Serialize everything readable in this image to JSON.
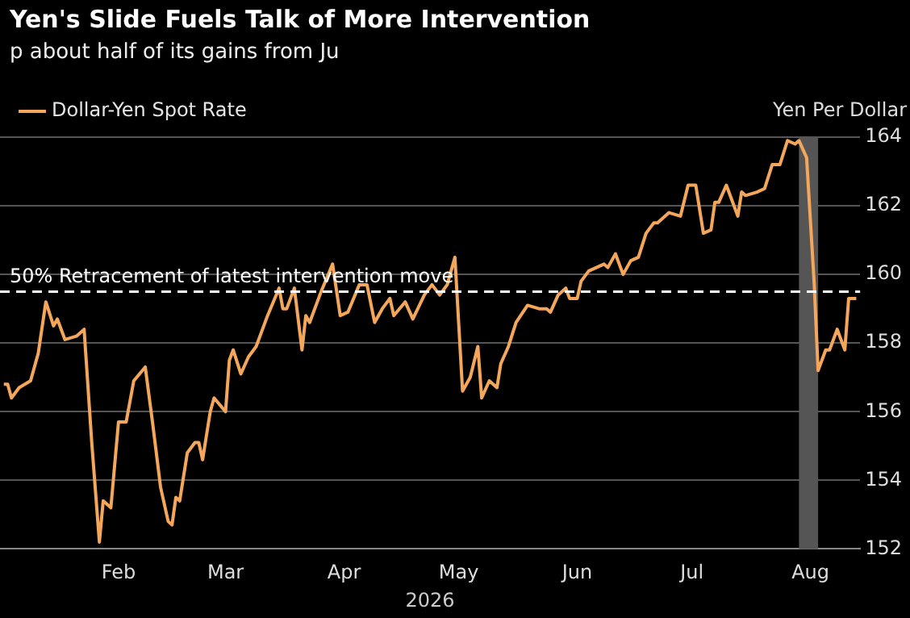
{
  "chart_data": {
    "type": "line",
    "title": "Yen's Slide Fuels Talk of More Intervention",
    "subtitle": "p about half of its gains from Ju",
    "xlabel": "2026",
    "ylabel": "Yen Per Dollar",
    "x": [
      "2026-01-02",
      "2026-01-03",
      "2026-01-04",
      "2026-01-06",
      "2026-01-09",
      "2026-01-11",
      "2026-01-13",
      "2026-01-15",
      "2026-01-16",
      "2026-01-18",
      "2026-01-21",
      "2026-01-23",
      "2026-01-25",
      "2026-01-27",
      "2026-01-28",
      "2026-01-30",
      "2026-02-01",
      "2026-02-03",
      "2026-02-05",
      "2026-02-08",
      "2026-02-10",
      "2026-02-12",
      "2026-02-14",
      "2026-02-15",
      "2026-02-16",
      "2026-02-17",
      "2026-02-19",
      "2026-02-21",
      "2026-02-22",
      "2026-02-23",
      "2026-02-25",
      "2026-02-26",
      "2026-03-01",
      "2026-03-02",
      "2026-03-03",
      "2026-03-05",
      "2026-03-07",
      "2026-03-09",
      "2026-03-12",
      "2026-03-15",
      "2026-03-16",
      "2026-03-17",
      "2026-03-19",
      "2026-03-21",
      "2026-03-22",
      "2026-03-23",
      "2026-03-26",
      "2026-03-29",
      "2026-03-31",
      "2026-04-02",
      "2026-04-05",
      "2026-04-07",
      "2026-04-09",
      "2026-04-11",
      "2026-04-13",
      "2026-04-14",
      "2026-04-17",
      "2026-04-19",
      "2026-04-22",
      "2026-04-24",
      "2026-04-26",
      "2026-04-28",
      "2026-04-30",
      "2026-05-02",
      "2026-05-04",
      "2026-05-06",
      "2026-05-07",
      "2026-05-09",
      "2026-05-11",
      "2026-05-12",
      "2026-05-14",
      "2026-05-16",
      "2026-05-19",
      "2026-05-22",
      "2026-05-24",
      "2026-05-25",
      "2026-05-27",
      "2026-05-29",
      "2026-05-30",
      "2026-06-01",
      "2026-06-02",
      "2026-06-04",
      "2026-06-06",
      "2026-06-08",
      "2026-06-09",
      "2026-06-11",
      "2026-06-13",
      "2026-06-15",
      "2026-06-17",
      "2026-06-19",
      "2026-06-21",
      "2026-06-22",
      "2026-06-25",
      "2026-06-28",
      "2026-06-30",
      "2026-07-02",
      "2026-07-04",
      "2026-07-06",
      "2026-07-07",
      "2026-07-08",
      "2026-07-10",
      "2026-07-13",
      "2026-07-14",
      "2026-07-15",
      "2026-07-18",
      "2026-07-20",
      "2026-07-22",
      "2026-07-24",
      "2026-07-26",
      "2026-07-28",
      "2026-07-29",
      "2026-07-31",
      "2026-08-02",
      "2026-08-03",
      "2026-08-05",
      "2026-08-06",
      "2026-08-08",
      "2026-08-10",
      "2026-08-11",
      "2026-08-13"
    ],
    "series": [
      {
        "name": "Dollar-Yen Spot Rate",
        "color": "#f4a75a",
        "values": [
          156.8,
          156.8,
          156.4,
          156.7,
          156.9,
          157.7,
          159.2,
          158.5,
          158.7,
          158.1,
          158.2,
          158.4,
          155.1,
          152.2,
          153.4,
          153.2,
          155.7,
          155.7,
          156.9,
          157.3,
          155.6,
          153.8,
          152.8,
          152.7,
          153.5,
          153.4,
          154.8,
          155.1,
          155.1,
          154.6,
          156.0,
          156.4,
          156.0,
          157.5,
          157.8,
          157.1,
          157.6,
          157.9,
          158.8,
          159.6,
          159.0,
          159.0,
          159.6,
          157.8,
          158.8,
          158.6,
          159.5,
          160.3,
          158.8,
          158.9,
          159.7,
          159.7,
          158.6,
          159.0,
          159.3,
          158.8,
          159.2,
          158.7,
          159.4,
          159.7,
          159.4,
          159.7,
          160.5,
          156.6,
          157.0,
          157.9,
          156.4,
          156.9,
          156.7,
          157.4,
          157.9,
          158.6,
          159.1,
          159.0,
          159.0,
          158.9,
          159.4,
          159.6,
          159.3,
          159.3,
          159.8,
          160.1,
          160.2,
          160.3,
          160.2,
          160.6,
          160.0,
          160.4,
          160.5,
          161.2,
          161.5,
          161.5,
          161.8,
          161.7,
          162.6,
          162.6,
          161.2,
          161.3,
          162.1,
          162.1,
          162.6,
          161.7,
          162.4,
          162.3,
          162.4,
          162.5,
          163.2,
          163.2,
          163.9,
          163.8,
          163.9,
          163.4,
          159.7,
          157.2,
          157.8,
          157.8,
          158.4,
          157.8,
          159.3,
          159.3
        ]
      }
    ],
    "xlim": [
      "2026-01-01",
      "2026-08-14"
    ],
    "xticks": [
      {
        "value": "2026-02-01",
        "label": "Feb"
      },
      {
        "value": "2026-03-01",
        "label": "Mar"
      },
      {
        "value": "2026-04-01",
        "label": "Apr"
      },
      {
        "value": "2026-05-01",
        "label": "May"
      },
      {
        "value": "2026-06-01",
        "label": "Jun"
      },
      {
        "value": "2026-07-01",
        "label": "Jul"
      },
      {
        "value": "2026-08-01",
        "label": "Aug"
      }
    ],
    "ylim": [
      152,
      164
    ],
    "yticks": [
      152,
      154,
      156,
      158,
      160,
      162,
      164
    ],
    "grid": "y",
    "legend": "top left",
    "marker": "none",
    "line_style": "solid",
    "ref_lines": [
      {
        "axis": "y",
        "value": 159.5,
        "label": "50% Retracement of latest intervention move",
        "color": "#ffffff",
        "line_style": "dashed"
      }
    ],
    "bands": [
      {
        "axis": "x",
        "from": "2026-07-29",
        "to": "2026-08-03",
        "color": "#555555"
      }
    ]
  }
}
